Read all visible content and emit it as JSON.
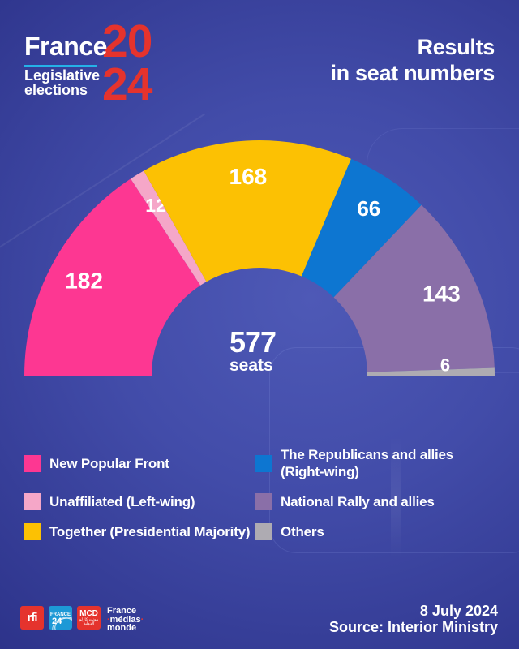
{
  "header": {
    "logo": {
      "brand": "France",
      "year_top": "20",
      "year_bottom": "24",
      "subtitle_line1": "Legislative",
      "subtitle_line2": "elections",
      "accent_underline_color": "#25b2e8",
      "year_color": "#e5332d"
    },
    "title_line1": "Results",
    "title_line2": "in seat numbers"
  },
  "chart_data": {
    "type": "pie",
    "variant": "hemicycle-half-donut",
    "total_seats": 577,
    "total_label": {
      "value": "577",
      "unit": "seats"
    },
    "series": [
      {
        "name": "New Popular Front",
        "seats": 182,
        "color": "#fd3792"
      },
      {
        "name": "Unaffiliated (Left-wing)",
        "seats": 12,
        "color": "#f5a7c8"
      },
      {
        "name": "Together (Presidential Majority)",
        "seats": 168,
        "color": "#fcc103"
      },
      {
        "name": "The Republicans and allies (Right-wing)",
        "seats": 66,
        "color": "#0d76d1"
      },
      {
        "name": "National Rally and allies",
        "seats": 143,
        "color": "#8a6fa8"
      },
      {
        "name": "Others",
        "seats": 6,
        "color": "#aeabb2"
      }
    ],
    "label_color": "#ffffff",
    "legend_position": "bottom-two-columns"
  },
  "footer": {
    "date": "8 July 2024",
    "source": "Source: Interior Ministry",
    "logos": {
      "rfi_label": "rfi",
      "france24_line1": "FRANCE",
      "france24_line2": "24",
      "mcd_label": "MCD",
      "mcd_arabic": "مونت كارلو الدولية",
      "fmm_line1": "France",
      "fmm_line2": "médias",
      "fmm_line3": "monde"
    }
  }
}
